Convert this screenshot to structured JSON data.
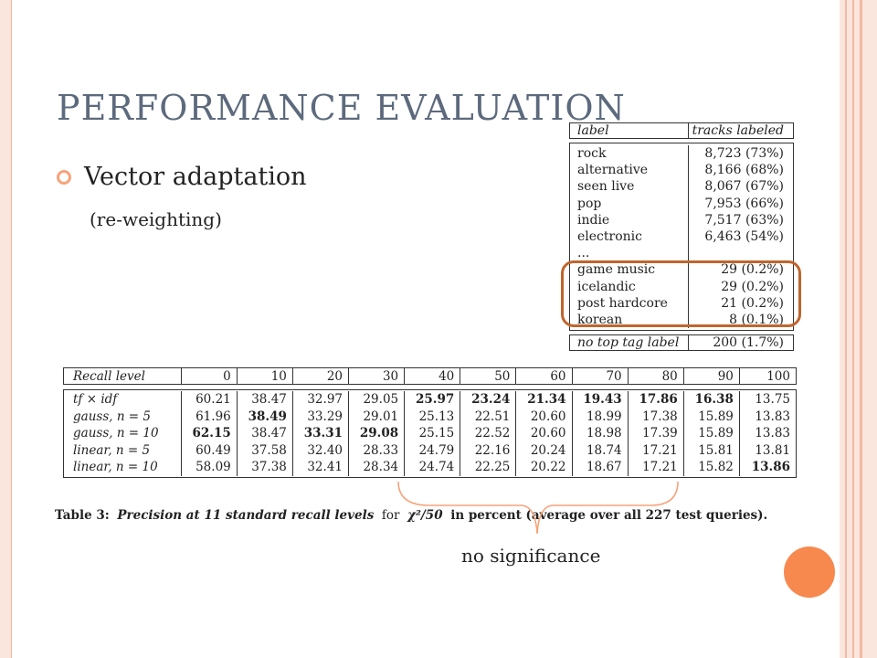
{
  "slide": {
    "title": "PERFORMANCE EVALUATION",
    "bullet": "Vector adaptation",
    "sub_bullet": "(re-weighting)",
    "annotation": "no significance"
  },
  "tag_table": {
    "headers": [
      "label",
      "tracks labeled"
    ],
    "rows": [
      [
        "rock",
        "8,723 (73%)"
      ],
      [
        "alternative",
        "8,166 (68%)"
      ],
      [
        "seen live",
        "8,067 (67%)"
      ],
      [
        "pop",
        "7,953 (66%)"
      ],
      [
        "indie",
        "7,517 (63%)"
      ],
      [
        "electronic",
        "6,463 (54%)"
      ],
      [
        "...",
        ""
      ],
      [
        "game music",
        "29 (0.2%)"
      ],
      [
        "icelandic",
        "29 (0.2%)"
      ],
      [
        "post hardcore",
        "21 (0.2%)"
      ],
      [
        "korean",
        "8 (0.1%)"
      ]
    ],
    "footer": [
      "no top tag label",
      "200 (1.7%)"
    ]
  },
  "precision_table": {
    "header_label": "Recall level",
    "levels": [
      "0",
      "10",
      "20",
      "30",
      "40",
      "50",
      "60",
      "70",
      "80",
      "90",
      "100"
    ],
    "rows": [
      {
        "label": "tf × idf",
        "values": [
          "60.21",
          "38.47",
          "32.97",
          "29.05",
          "25.97",
          "23.24",
          "21.34",
          "19.43",
          "17.86",
          "16.38",
          "13.75"
        ]
      },
      {
        "label": "gauss, n = 5",
        "values": [
          "61.96",
          "38.49",
          "33.29",
          "29.01",
          "25.13",
          "22.51",
          "20.60",
          "18.99",
          "17.38",
          "15.89",
          "13.83"
        ]
      },
      {
        "label": "gauss, n = 10",
        "values": [
          "62.15",
          "38.47",
          "33.31",
          "29.08",
          "25.15",
          "22.52",
          "20.60",
          "18.98",
          "17.39",
          "15.89",
          "13.83"
        ]
      },
      {
        "label": "linear, n = 5",
        "values": [
          "60.49",
          "37.58",
          "32.40",
          "28.33",
          "24.79",
          "22.16",
          "20.24",
          "18.74",
          "17.21",
          "15.81",
          "13.81"
        ]
      },
      {
        "label": "linear, n = 10",
        "values": [
          "58.09",
          "37.38",
          "32.41",
          "28.34",
          "24.74",
          "22.25",
          "20.22",
          "18.67",
          "17.21",
          "15.82",
          "13.86"
        ]
      }
    ],
    "bold_cells": [
      [
        0,
        4
      ],
      [
        0,
        5
      ],
      [
        0,
        6
      ],
      [
        0,
        7
      ],
      [
        0,
        8
      ],
      [
        0,
        9
      ],
      [
        1,
        1
      ],
      [
        2,
        0
      ],
      [
        2,
        2
      ],
      [
        2,
        3
      ],
      [
        4,
        10
      ]
    ]
  },
  "caption": {
    "prefix": "Table 3:",
    "italic_part": "Precision at 11 standard recall levels",
    "for": "for",
    "metric": "χ²/50",
    "suffix": "in percent (average over all 227 test queries)."
  },
  "colors": {
    "title": "#5d6a7d",
    "accent_orange": "#f7894f",
    "frame_pink": "#fbe6de",
    "highlight_brown": "#c0652d"
  }
}
